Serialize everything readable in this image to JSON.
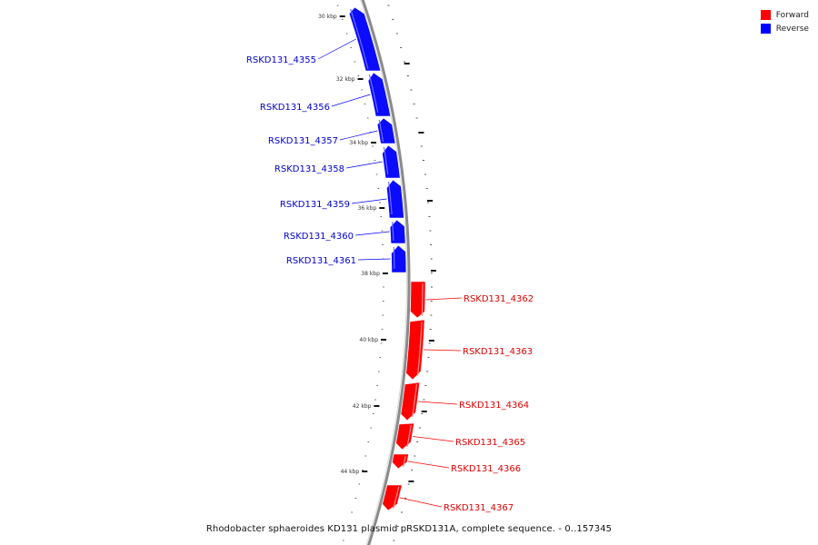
{
  "legend": [
    {
      "label": "Forward",
      "color": "#ff0000"
    },
    {
      "label": "Reverse",
      "color": "#0000ff"
    }
  ],
  "caption": "Rhodobacter sphaeroides KD131 plasmid pRSKD131A, complete sequence. - 0..157345",
  "ruler_labels": [
    "30 kbp",
    "32 kbp",
    "34 kbp",
    "36 kbp",
    "38 kbp",
    "40 kbp",
    "42 kbp",
    "44 kbp"
  ],
  "genes": [
    {
      "name": "RSKD131_4355",
      "strand": "reverse"
    },
    {
      "name": "RSKD131_4356",
      "strand": "reverse"
    },
    {
      "name": "RSKD131_4357",
      "strand": "reverse"
    },
    {
      "name": "RSKD131_4358",
      "strand": "reverse"
    },
    {
      "name": "RSKD131_4359",
      "strand": "reverse"
    },
    {
      "name": "RSKD131_4360",
      "strand": "reverse"
    },
    {
      "name": "RSKD131_4361",
      "strand": "reverse"
    },
    {
      "name": "RSKD131_4362",
      "strand": "forward"
    },
    {
      "name": "RSKD131_4363",
      "strand": "forward"
    },
    {
      "name": "RSKD131_4364",
      "strand": "forward"
    },
    {
      "name": "RSKD131_4365",
      "strand": "forward"
    },
    {
      "name": "RSKD131_4366",
      "strand": "forward"
    },
    {
      "name": "RSKD131_4367",
      "strand": "forward"
    }
  ]
}
